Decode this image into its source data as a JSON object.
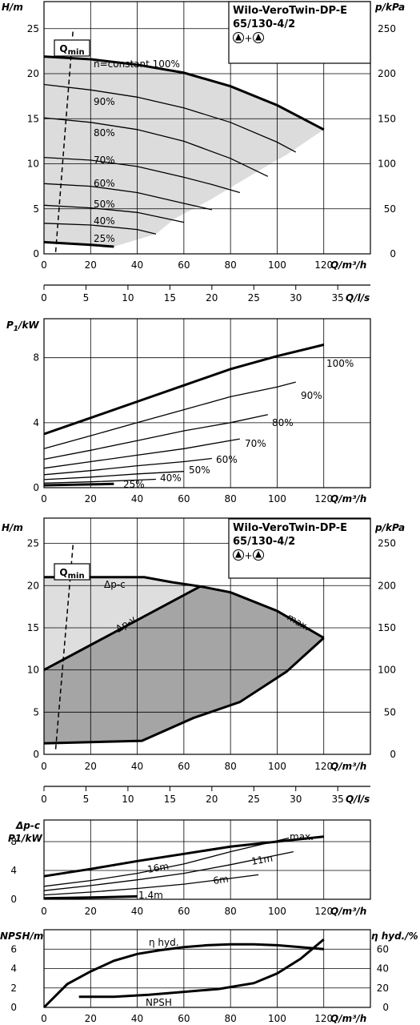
{
  "chart_data": [
    {
      "type": "line",
      "title": "Wilo-VeroTwin-DP-E 65/130-4/2",
      "title_line1": "Wilo-VeroTwin-DP-E",
      "title_line2": "65/130-4/2",
      "pump_symbol": "▲+▲",
      "xlabel": "Q/m³/h",
      "ylabel": "H/m",
      "y2label": "p/kPa",
      "xlim": [
        0,
        140
      ],
      "ylim": [
        0,
        28
      ],
      "x_ticks": [
        "0",
        "20",
        "40",
        "60",
        "80",
        "100",
        "120"
      ],
      "y_ticks": [
        "0",
        "5",
        "10",
        "15",
        "20",
        "25"
      ],
      "y2_ticks": [
        "0",
        "50",
        "100",
        "150",
        "200",
        "250"
      ],
      "qmin_label": "Qmin",
      "qmin_line": {
        "x": [
          5,
          12.5
        ],
        "y": [
          0.2,
          25
        ]
      },
      "series": [
        {
          "name": "n=constant 100%",
          "x": [
            0,
            20,
            40,
            60,
            80,
            100,
            120
          ],
          "y": [
            21.9,
            21.6,
            21.0,
            20.1,
            18.6,
            16.5,
            13.8
          ],
          "bold": true
        },
        {
          "name": "90%",
          "x": [
            0,
            20,
            40,
            60,
            80,
            100,
            108
          ],
          "y": [
            18.8,
            18.2,
            17.4,
            16.2,
            14.6,
            12.4,
            11.3
          ]
        },
        {
          "name": "80%",
          "x": [
            0,
            20,
            40,
            60,
            80,
            96
          ],
          "y": [
            15.1,
            14.6,
            13.8,
            12.5,
            10.6,
            8.6
          ]
        },
        {
          "name": "70%",
          "x": [
            0,
            20,
            40,
            60,
            72,
            84
          ],
          "y": [
            10.7,
            10.4,
            9.7,
            8.5,
            7.7,
            6.8
          ]
        },
        {
          "name": "60%",
          "x": [
            0,
            20,
            40,
            60,
            72
          ],
          "y": [
            7.8,
            7.5,
            6.8,
            5.6,
            4.9
          ]
        },
        {
          "name": "50%",
          "x": [
            0,
            20,
            40,
            60
          ],
          "y": [
            5.4,
            5.1,
            4.6,
            3.5
          ]
        },
        {
          "name": "40%",
          "x": [
            0,
            20,
            40,
            48
          ],
          "y": [
            3.4,
            3.2,
            2.7,
            2.2
          ]
        },
        {
          "name": "25%",
          "x": [
            0,
            20,
            30
          ],
          "y": [
            1.3,
            1.0,
            0.8
          ],
          "bold": true
        }
      ],
      "area": {
        "x": [
          0,
          20,
          40,
          60,
          80,
          100,
          120,
          104,
          88,
          72,
          56,
          48,
          30,
          0
        ],
        "y": [
          21.9,
          21.6,
          21.0,
          20.1,
          18.6,
          16.5,
          13.8,
          11.0,
          8.6,
          6.1,
          3.9,
          2.2,
          0.8,
          1.3
        ]
      }
    },
    {
      "type": "axis",
      "xlabel": "Q/l/s",
      "xlim": [
        0,
        38.89
      ],
      "x_ticks": [
        "0",
        "5",
        "10",
        "15",
        "20",
        "25",
        "30",
        "35"
      ]
    },
    {
      "type": "line",
      "ylabel": "P1/kW",
      "xlabel": "Q/m³/h",
      "xlim": [
        0,
        140
      ],
      "ylim": [
        0,
        10.4
      ],
      "x_ticks": [
        "0",
        "20",
        "40",
        "60",
        "80",
        "100",
        "120"
      ],
      "y_ticks": [
        "0",
        "4",
        "8"
      ],
      "series": [
        {
          "name": "100%",
          "x": [
            0,
            20,
            40,
            60,
            80,
            100,
            120
          ],
          "y": [
            3.3,
            4.3,
            5.3,
            6.3,
            7.3,
            8.1,
            8.8
          ],
          "bold": true
        },
        {
          "name": "90%",
          "x": [
            0,
            20,
            40,
            60,
            80,
            100,
            108
          ],
          "y": [
            2.4,
            3.2,
            4.0,
            4.8,
            5.6,
            6.2,
            6.5
          ]
        },
        {
          "name": "80%",
          "x": [
            0,
            20,
            40,
            60,
            80,
            96
          ],
          "y": [
            1.75,
            2.3,
            2.9,
            3.5,
            4.0,
            4.5
          ]
        },
        {
          "name": "70%",
          "x": [
            0,
            20,
            40,
            60,
            84
          ],
          "y": [
            1.2,
            1.6,
            2.0,
            2.4,
            3.0
          ]
        },
        {
          "name": "60%",
          "x": [
            0,
            20,
            40,
            60,
            72
          ],
          "y": [
            0.8,
            1.05,
            1.35,
            1.6,
            1.8
          ]
        },
        {
          "name": "50%",
          "x": [
            0,
            20,
            40,
            60
          ],
          "y": [
            0.5,
            0.65,
            0.85,
            1.0
          ]
        },
        {
          "name": "40%",
          "x": [
            0,
            20,
            40,
            48
          ],
          "y": [
            0.28,
            0.36,
            0.47,
            0.52
          ]
        },
        {
          "name": "25%",
          "x": [
            0,
            15,
            30
          ],
          "y": [
            0.15,
            0.19,
            0.23
          ],
          "bold": true
        }
      ]
    },
    {
      "type": "area",
      "title": "Wilo-VeroTwin-DP-E 65/130-4/2",
      "title_line1": "Wilo-VeroTwin-DP-E",
      "title_line2": "65/130-4/2",
      "pump_symbol": "▲+▲",
      "xlabel": "Q/m³/h",
      "ylabel": "H/m",
      "y2label": "p/kPa",
      "xlim": [
        0,
        140
      ],
      "ylim": [
        0,
        28
      ],
      "x_ticks": [
        "0",
        "20",
        "40",
        "60",
        "80",
        "100",
        "120"
      ],
      "y_ticks": [
        "0",
        "5",
        "10",
        "15",
        "20",
        "25"
      ],
      "y2_ticks": [
        "0",
        "50",
        "100",
        "150",
        "200",
        "250"
      ],
      "labels": {
        "dpc": "Δp-c",
        "dpv": "Δp-v",
        "max": "max."
      },
      "qmin_label": "Qmin",
      "qmin_line": {
        "x": [
          5,
          12.5
        ],
        "y": [
          0.6,
          25
        ]
      },
      "light_area": {
        "x": [
          0,
          43,
          55,
          67,
          67,
          0
        ],
        "y": [
          21,
          21,
          20.4,
          19.9,
          19.9,
          10
        ]
      },
      "dark_area": {
        "x": [
          0,
          67,
          80,
          100,
          120,
          104,
          84,
          64,
          42,
          0
        ],
        "y": [
          10,
          19.9,
          19.2,
          17.0,
          13.8,
          9.8,
          6.2,
          4.3,
          1.6,
          1.3
        ]
      },
      "series": [
        {
          "name": "Δp-c",
          "x": [
            0,
            43,
            55,
            67,
            80,
            100,
            120
          ],
          "y": [
            21,
            21,
            20.4,
            19.9,
            19.2,
            17.0,
            13.8
          ],
          "bold": true
        },
        {
          "name": "Δp-v",
          "x": [
            0,
            67
          ],
          "y": [
            10,
            19.9
          ],
          "bold": true
        },
        {
          "name": "min",
          "x": [
            0,
            42,
            64,
            84,
            104,
            120
          ],
          "y": [
            1.3,
            1.6,
            4.3,
            6.2,
            9.8,
            13.8
          ],
          "bold": true
        }
      ]
    },
    {
      "type": "axis",
      "xlabel": "Q/l/s",
      "xlim": [
        0,
        38.89
      ],
      "x_ticks": [
        "0",
        "5",
        "10",
        "15",
        "20",
        "25",
        "30",
        "35"
      ]
    },
    {
      "type": "line",
      "ylabel": "Δp-c P1/kW",
      "ylabel1": "Δp-c",
      "ylabel2": "P1/kW",
      "xlabel": "Q/m³/h",
      "xlim": [
        0,
        140
      ],
      "ylim": [
        0,
        10.5
      ],
      "x_ticks": [
        "0",
        "20",
        "40",
        "60",
        "80",
        "100",
        "120"
      ],
      "y_ticks": [
        "0",
        "4",
        "8"
      ],
      "series": [
        {
          "name": "max.",
          "x": [
            0,
            20,
            40,
            60,
            80,
            100,
            120
          ],
          "y": [
            3.2,
            4.2,
            5.3,
            6.3,
            7.3,
            8.0,
            8.7
          ],
          "bold": true
        },
        {
          "name": "16m",
          "x": [
            0,
            20,
            40,
            60,
            80,
            105
          ],
          "y": [
            1.8,
            2.6,
            3.6,
            4.9,
            6.6,
            8.5
          ]
        },
        {
          "name": "11m",
          "x": [
            0,
            20,
            40,
            60,
            80,
            107
          ],
          "y": [
            1.2,
            1.9,
            2.7,
            3.6,
            4.8,
            6.6
          ]
        },
        {
          "name": "6m",
          "x": [
            0,
            20,
            40,
            60,
            80,
            92
          ],
          "y": [
            0.6,
            1.0,
            1.5,
            2.1,
            2.9,
            3.4
          ]
        },
        {
          "name": "1.4m",
          "x": [
            0,
            20,
            40
          ],
          "y": [
            0.15,
            0.25,
            0.4
          ],
          "bold": true
        }
      ]
    },
    {
      "type": "line",
      "ylabel": "NPSH/m",
      "y2label": "η hyd./%",
      "xlabel": "Q/m³/h",
      "xlim": [
        0,
        140
      ],
      "ylim": [
        0,
        8
      ],
      "y2lim": [
        0,
        80
      ],
      "x_ticks": [
        "0",
        "20",
        "40",
        "60",
        "80",
        "100",
        "120"
      ],
      "y_ticks": [
        "0",
        "2",
        "4",
        "6"
      ],
      "y2_ticks": [
        "0",
        "20",
        "40",
        "60"
      ],
      "series": [
        {
          "name": "η hyd.",
          "axis": "y2",
          "x": [
            0,
            10,
            20,
            30,
            40,
            50,
            60,
            70,
            80,
            90,
            100,
            110,
            120
          ],
          "y": [
            0,
            24,
            37,
            48,
            55,
            59,
            62,
            64,
            65,
            65,
            64,
            62,
            60
          ],
          "bold": true
        },
        {
          "name": "NPSH",
          "axis": "y",
          "x": [
            15,
            30,
            45,
            60,
            75,
            90,
            100,
            110,
            120
          ],
          "y": [
            1.1,
            1.1,
            1.3,
            1.6,
            1.9,
            2.5,
            3.5,
            5.0,
            7.0
          ],
          "bold": true
        }
      ]
    }
  ]
}
